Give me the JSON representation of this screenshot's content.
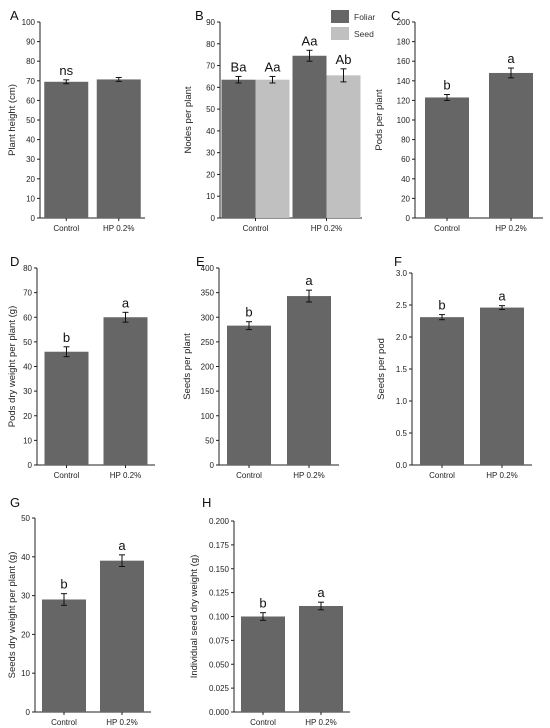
{
  "colors": {
    "foliar": "#666666",
    "seed": "#c0c0c0",
    "axis": "#222222"
  },
  "legend": [
    "Foliar",
    "Seed"
  ],
  "chart_data": [
    {
      "panel": "A",
      "type": "bar",
      "categories": [
        "Control",
        "HP 0.2%"
      ],
      "ylabel": "Plant height (cm)",
      "ylim": [
        0,
        100
      ],
      "yticks": [
        0,
        10,
        20,
        30,
        40,
        50,
        60,
        70,
        80,
        90,
        100
      ],
      "series": [
        {
          "values": [
            69.5,
            70.7
          ],
          "errors": [
            1.0,
            1.0
          ],
          "color": "foliar"
        }
      ],
      "annotations": [
        {
          "category": 0,
          "series": 0,
          "text": "ns"
        }
      ]
    },
    {
      "panel": "B",
      "type": "bar",
      "categories": [
        "Control",
        "HP 0.2%"
      ],
      "ylabel": "Nodes per plant",
      "ylim": [
        0,
        90
      ],
      "yticks": [
        0,
        10,
        20,
        30,
        40,
        50,
        60,
        70,
        80,
        90
      ],
      "legend": "top-right",
      "series": [
        {
          "name": "Foliar",
          "values": [
            63.5,
            74.5
          ],
          "errors": [
            1.5,
            2.5
          ],
          "color": "foliar"
        },
        {
          "name": "Seed",
          "values": [
            63.5,
            65.5
          ],
          "errors": [
            1.5,
            3.0
          ],
          "color": "seed"
        }
      ],
      "annotations": [
        {
          "category": 0,
          "series": 0,
          "text": "Ba"
        },
        {
          "category": 0,
          "series": 1,
          "text": "Aa"
        },
        {
          "category": 1,
          "series": 0,
          "text": "Aa"
        },
        {
          "category": 1,
          "series": 1,
          "text": "Ab"
        }
      ]
    },
    {
      "panel": "C",
      "type": "bar",
      "categories": [
        "Control",
        "HP 0.2%"
      ],
      "ylabel": "Pods per plant",
      "ylim": [
        0,
        200
      ],
      "yticks": [
        0,
        20,
        40,
        60,
        80,
        100,
        120,
        140,
        160,
        180,
        200
      ],
      "series": [
        {
          "values": [
            123,
            148
          ],
          "errors": [
            3,
            5
          ],
          "color": "foliar"
        }
      ],
      "annotations": [
        {
          "category": 0,
          "series": 0,
          "text": "b"
        },
        {
          "category": 1,
          "series": 0,
          "text": "a"
        }
      ]
    },
    {
      "panel": "D",
      "type": "bar",
      "categories": [
        "Control",
        "HP 0.2%"
      ],
      "ylabel": "Pods dry weight per plant (g)",
      "ylim": [
        0,
        80
      ],
      "yticks": [
        0,
        10,
        20,
        30,
        40,
        50,
        60,
        70,
        80
      ],
      "series": [
        {
          "values": [
            46,
            60
          ],
          "errors": [
            2,
            2
          ],
          "color": "foliar"
        }
      ],
      "annotations": [
        {
          "category": 0,
          "series": 0,
          "text": "b"
        },
        {
          "category": 1,
          "series": 0,
          "text": "a"
        }
      ]
    },
    {
      "panel": "E",
      "type": "bar",
      "categories": [
        "Control",
        "HP 0.2%"
      ],
      "ylabel": "Seeds per plant",
      "ylim": [
        0,
        400
      ],
      "yticks": [
        0,
        50,
        100,
        150,
        200,
        250,
        300,
        350,
        400
      ],
      "series": [
        {
          "values": [
            283,
            343
          ],
          "errors": [
            8,
            12
          ],
          "color": "foliar"
        }
      ],
      "annotations": [
        {
          "category": 0,
          "series": 0,
          "text": "b"
        },
        {
          "category": 1,
          "series": 0,
          "text": "a"
        }
      ]
    },
    {
      "panel": "F",
      "type": "bar",
      "categories": [
        "Control",
        "HP 0.2%"
      ],
      "ylabel": "Seeds per pod",
      "ylim": [
        0,
        3.0
      ],
      "yticks": [
        0.0,
        0.5,
        1.0,
        1.5,
        2.0,
        2.5,
        3.0
      ],
      "tickDecimals": 1,
      "series": [
        {
          "values": [
            2.31,
            2.46
          ],
          "errors": [
            0.04,
            0.03
          ],
          "color": "foliar"
        }
      ],
      "annotations": [
        {
          "category": 0,
          "series": 0,
          "text": "b"
        },
        {
          "category": 1,
          "series": 0,
          "text": "a"
        }
      ]
    },
    {
      "panel": "G",
      "type": "bar",
      "categories": [
        "Control",
        "HP 0.2%"
      ],
      "ylabel": "Seeds dry weight per plant (g)",
      "ylim": [
        0,
        50
      ],
      "yticks": [
        0,
        10,
        20,
        30,
        40,
        50
      ],
      "series": [
        {
          "values": [
            29,
            39
          ],
          "errors": [
            1.5,
            1.5
          ],
          "color": "foliar"
        }
      ],
      "annotations": [
        {
          "category": 0,
          "series": 0,
          "text": "b"
        },
        {
          "category": 1,
          "series": 0,
          "text": "a"
        }
      ]
    },
    {
      "panel": "H",
      "type": "bar",
      "categories": [
        "Control",
        "HP 0.2%"
      ],
      "ylabel": "Individual seed dry weight (g)",
      "ylim": [
        0,
        0.2
      ],
      "yticks": [
        0.0,
        0.025,
        0.05,
        0.075,
        0.1,
        0.125,
        0.15,
        0.175,
        0.2
      ],
      "tickDecimals": 3,
      "series": [
        {
          "values": [
            0.1,
            0.111
          ],
          "errors": [
            0.004,
            0.004
          ],
          "color": "foliar"
        }
      ],
      "annotations": [
        {
          "category": 0,
          "series": 0,
          "text": "b"
        },
        {
          "category": 1,
          "series": 0,
          "text": "a"
        }
      ]
    }
  ]
}
